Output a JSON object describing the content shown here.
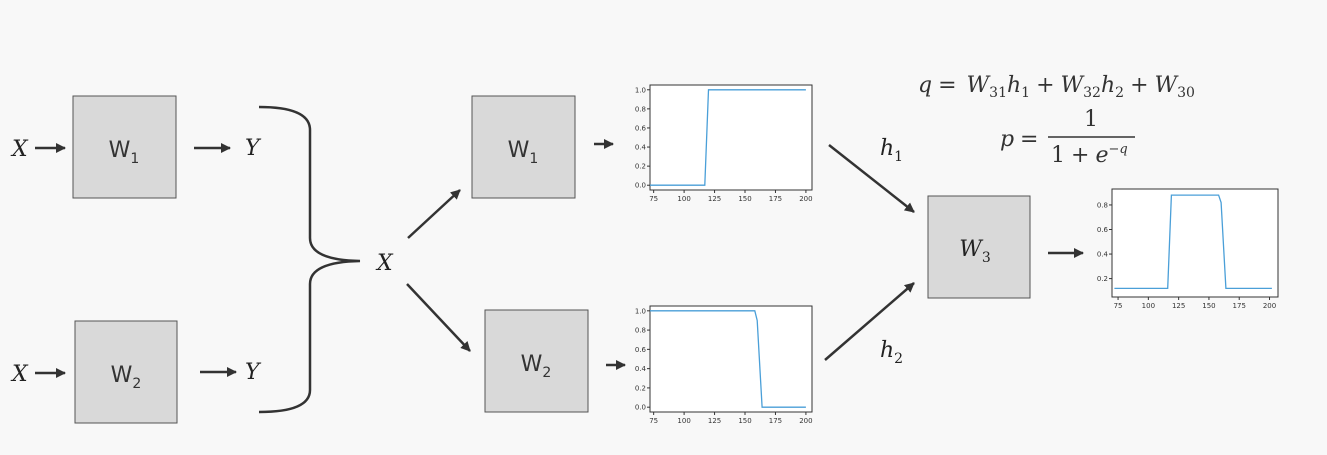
{
  "diagram": {
    "left_block_top": {
      "input": "X",
      "weight": "W",
      "weight_sub": "1",
      "output": "Y"
    },
    "left_block_bottom": {
      "input": "X",
      "weight": "W",
      "weight_sub": "2",
      "output": "Y"
    },
    "merged_input": "X",
    "mid_top_weight": {
      "main": "W",
      "sub": "1"
    },
    "mid_bottom_weight": {
      "main": "W",
      "sub": "2"
    },
    "h1": {
      "main": "h",
      "sub": "1"
    },
    "h2": {
      "main": "h",
      "sub": "2"
    },
    "out_weight": {
      "main": "W",
      "sub": "3"
    },
    "equation_q": {
      "lhs": "q",
      "eq": "=",
      "t1_w": "W",
      "t1_wsub": "31",
      "t1_h": "h",
      "t1_hsub": "1",
      "plus1": "+",
      "t2_w": "W",
      "t2_wsub": "32",
      "t2_h": "h",
      "t2_hsub": "2",
      "plus2": "+",
      "t3_w": "W",
      "t3_wsub": "30"
    },
    "equation_p": {
      "lhs": "p",
      "eq": "=",
      "numerator": "1",
      "den_one": "1",
      "den_plus": "+",
      "den_e": "e",
      "den_exp": "−q"
    }
  },
  "chart_data": [
    {
      "type": "line",
      "xlim": [
        72,
        205
      ],
      "ylim": [
        -0.05,
        1.05
      ],
      "x_ticks": [
        75,
        100,
        125,
        150,
        175,
        200
      ],
      "x_tick_labels": [
        "75",
        "100",
        "125",
        "150",
        "175",
        "200"
      ],
      "y_ticks": [
        0.0,
        0.2,
        0.4,
        0.6,
        0.8,
        1.0
      ],
      "y_tick_labels": [
        "0.0",
        "0.2",
        "0.4",
        "0.6",
        "0.8",
        "1.0"
      ],
      "grid": false,
      "series": [
        {
          "color": "#4a9fd8",
          "x": [
            72,
            117,
            120,
            200
          ],
          "y": [
            0.0,
            0.0,
            1.0,
            1.0
          ]
        }
      ]
    },
    {
      "type": "line",
      "xlim": [
        72,
        205
      ],
      "ylim": [
        -0.05,
        1.05
      ],
      "x_ticks": [
        75,
        100,
        125,
        150,
        175,
        200
      ],
      "x_tick_labels": [
        "75",
        "100",
        "125",
        "150",
        "175",
        "200"
      ],
      "y_ticks": [
        0.0,
        0.2,
        0.4,
        0.6,
        0.8,
        1.0
      ],
      "y_tick_labels": [
        "0.0",
        "0.2",
        "0.4",
        "0.6",
        "0.8",
        "1.0"
      ],
      "grid": false,
      "series": [
        {
          "color": "#4a9fd8",
          "x": [
            72,
            158,
            160,
            164,
            200
          ],
          "y": [
            1.0,
            1.0,
            0.9,
            0.0,
            0.0
          ]
        }
      ]
    },
    {
      "type": "line",
      "xlim": [
        70,
        207
      ],
      "ylim": [
        0.05,
        0.93
      ],
      "x_ticks": [
        75,
        100,
        125,
        150,
        175,
        200
      ],
      "x_tick_labels": [
        "75",
        "100",
        "125",
        "150",
        "175",
        "200"
      ],
      "y_ticks": [
        0.2,
        0.4,
        0.6,
        0.8
      ],
      "y_tick_labels": [
        "0.2",
        "0.4",
        "0.6",
        "0.8"
      ],
      "grid": false,
      "series": [
        {
          "color": "#4a9fd8",
          "x": [
            72,
            116,
            119,
            158,
            160,
            164,
            202
          ],
          "y": [
            0.12,
            0.12,
            0.88,
            0.88,
            0.82,
            0.12,
            0.12
          ]
        }
      ]
    }
  ]
}
